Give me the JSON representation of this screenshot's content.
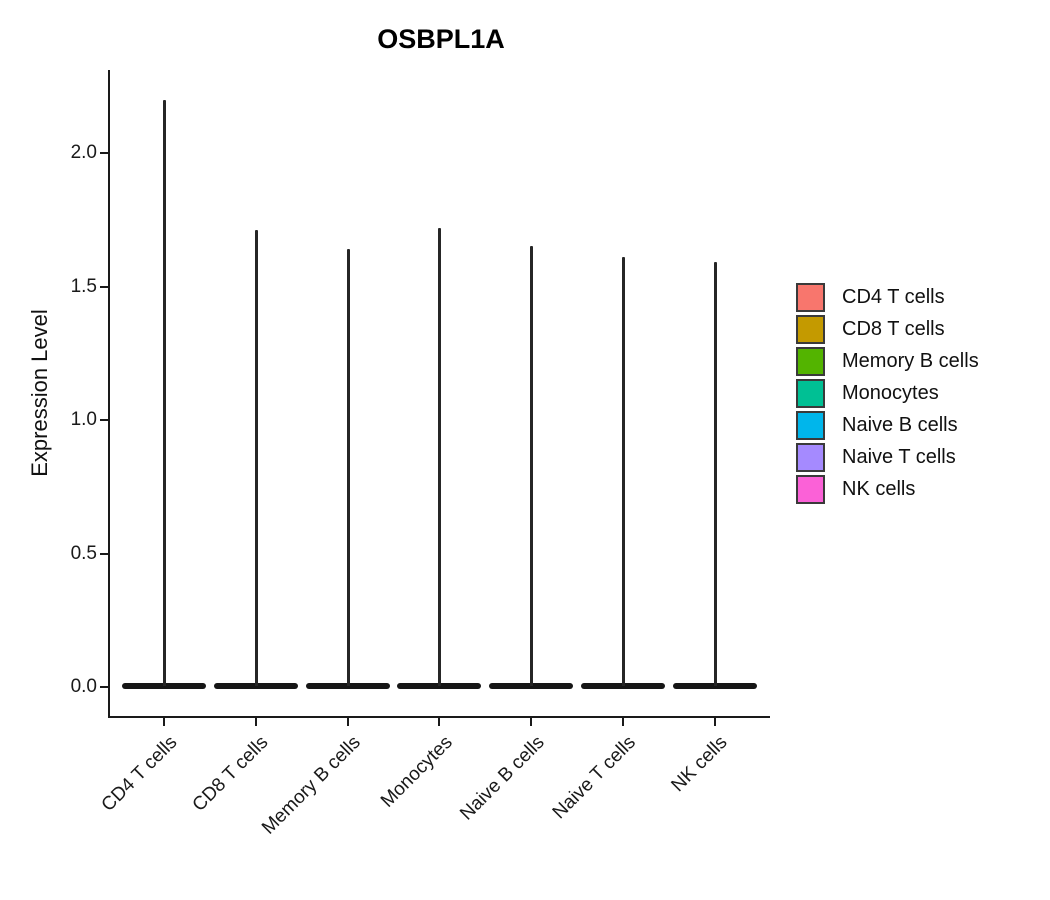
{
  "chart_data": {
    "type": "violin",
    "title": "OSBPL1A",
    "ylabel": "Expression Level",
    "xlabel": "",
    "categories": [
      "CD4 T cells",
      "CD8 T cells",
      "Memory B cells",
      "Monocytes",
      "Naive B cells",
      "Naive T cells",
      "NK cells"
    ],
    "series": [
      {
        "name": "CD4 T cells",
        "color": "#F8766D",
        "max_expression": 2.2,
        "dense_at": 0.0
      },
      {
        "name": "CD8 T cells",
        "color": "#C49A00",
        "max_expression": 1.71,
        "dense_at": 0.0
      },
      {
        "name": "Memory B cells",
        "color": "#53B400",
        "max_expression": 1.64,
        "dense_at": 0.0
      },
      {
        "name": "Monocytes",
        "color": "#00C094",
        "max_expression": 1.72,
        "dense_at": 0.0
      },
      {
        "name": "Naive B cells",
        "color": "#00B6EB",
        "max_expression": 1.65,
        "dense_at": 0.0
      },
      {
        "name": "Naive T cells",
        "color": "#A58AFF",
        "max_expression": 1.61,
        "dense_at": 0.0
      },
      {
        "name": "NK cells",
        "color": "#FB61D7",
        "max_expression": 1.59,
        "dense_at": 0.0
      }
    ],
    "y_ticks": [
      0.0,
      0.5,
      1.0,
      1.5,
      2.0
    ],
    "ylim": [
      0,
      2.3
    ],
    "grid": false,
    "legend_position": "right",
    "axis_color": "#1a1a1a",
    "violin_outline_color": "#1f1f1f",
    "shape_note": "Each violin is extremely flat: a wide thin base at expression 0 with a narrow vertical spike rising to the group maximum"
  }
}
